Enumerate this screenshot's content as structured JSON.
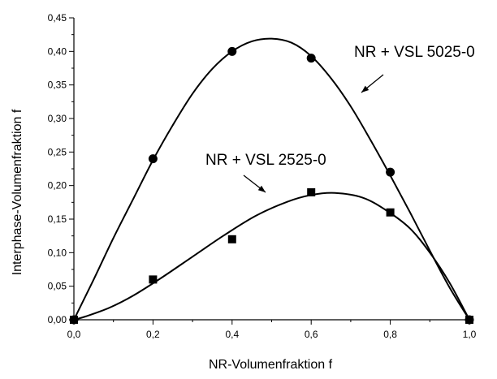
{
  "chart_data": {
    "type": "scatter",
    "title": "",
    "xlabel": "NR-Volumenfraktion f",
    "ylabel": "Interphase-Volumenfraktion f",
    "xlim": [
      0.0,
      1.0
    ],
    "ylim": [
      0.0,
      0.45
    ],
    "grid": false,
    "x_ticks": [
      {
        "value": 0.0,
        "label": "0,0"
      },
      {
        "value": 0.2,
        "label": "0,2"
      },
      {
        "value": 0.4,
        "label": "0,4"
      },
      {
        "value": 0.6,
        "label": "0,6"
      },
      {
        "value": 0.8,
        "label": "0,8"
      },
      {
        "value": 1.0,
        "label": "1,0"
      }
    ],
    "y_ticks": [
      {
        "value": 0.0,
        "label": "0,00"
      },
      {
        "value": 0.05,
        "label": "0,05"
      },
      {
        "value": 0.1,
        "label": "0,10"
      },
      {
        "value": 0.15,
        "label": "0,15"
      },
      {
        "value": 0.2,
        "label": "0,20"
      },
      {
        "value": 0.25,
        "label": "0,25"
      },
      {
        "value": 0.3,
        "label": "0,30"
      },
      {
        "value": 0.35,
        "label": "0,35"
      },
      {
        "value": 0.4,
        "label": "0,40"
      },
      {
        "value": 0.45,
        "label": "0,45"
      }
    ],
    "series": [
      {
        "name": "NR + VSL 5025-0",
        "marker": "circle",
        "points": [
          {
            "x": 0.0,
            "y": 0.0
          },
          {
            "x": 0.2,
            "y": 0.24
          },
          {
            "x": 0.4,
            "y": 0.4
          },
          {
            "x": 0.6,
            "y": 0.39
          },
          {
            "x": 0.8,
            "y": 0.22
          },
          {
            "x": 1.0,
            "y": 0.0
          }
        ],
        "fit_curve": [
          {
            "x": 0.0,
            "y": 0.0
          },
          {
            "x": 0.05,
            "y": 0.06
          },
          {
            "x": 0.1,
            "y": 0.122
          },
          {
            "x": 0.15,
            "y": 0.18
          },
          {
            "x": 0.2,
            "y": 0.238
          },
          {
            "x": 0.25,
            "y": 0.29
          },
          {
            "x": 0.3,
            "y": 0.337
          },
          {
            "x": 0.35,
            "y": 0.374
          },
          {
            "x": 0.4,
            "y": 0.4
          },
          {
            "x": 0.45,
            "y": 0.415
          },
          {
            "x": 0.5,
            "y": 0.419
          },
          {
            "x": 0.55,
            "y": 0.413
          },
          {
            "x": 0.6,
            "y": 0.393
          },
          {
            "x": 0.65,
            "y": 0.36
          },
          {
            "x": 0.7,
            "y": 0.318
          },
          {
            "x": 0.75,
            "y": 0.268
          },
          {
            "x": 0.8,
            "y": 0.215
          },
          {
            "x": 0.85,
            "y": 0.16
          },
          {
            "x": 0.9,
            "y": 0.103
          },
          {
            "x": 0.95,
            "y": 0.048
          },
          {
            "x": 1.0,
            "y": 0.0
          }
        ]
      },
      {
        "name": "NR + VSL 2525-0",
        "marker": "square",
        "points": [
          {
            "x": 0.0,
            "y": 0.0
          },
          {
            "x": 0.2,
            "y": 0.06
          },
          {
            "x": 0.4,
            "y": 0.12
          },
          {
            "x": 0.6,
            "y": 0.19
          },
          {
            "x": 0.8,
            "y": 0.16
          },
          {
            "x": 1.0,
            "y": 0.0
          }
        ],
        "fit_curve": [
          {
            "x": 0.0,
            "y": 0.0
          },
          {
            "x": 0.03,
            "y": 0.005
          },
          {
            "x": 0.09,
            "y": 0.018
          },
          {
            "x": 0.15,
            "y": 0.036
          },
          {
            "x": 0.22,
            "y": 0.062
          },
          {
            "x": 0.3,
            "y": 0.094
          },
          {
            "x": 0.38,
            "y": 0.126
          },
          {
            "x": 0.46,
            "y": 0.155
          },
          {
            "x": 0.54,
            "y": 0.176
          },
          {
            "x": 0.6,
            "y": 0.186
          },
          {
            "x": 0.66,
            "y": 0.189
          },
          {
            "x": 0.73,
            "y": 0.182
          },
          {
            "x": 0.79,
            "y": 0.163
          },
          {
            "x": 0.85,
            "y": 0.136
          },
          {
            "x": 0.9,
            "y": 0.1
          },
          {
            "x": 0.95,
            "y": 0.055
          },
          {
            "x": 1.0,
            "y": 0.0
          }
        ]
      }
    ],
    "annotations": [
      {
        "text": "NR + VSL 5025-0",
        "target": "NR + VSL 5025-0",
        "arrow": true
      },
      {
        "text": "NR + VSL 2525-0",
        "target": "NR + VSL 2525-0",
        "arrow": true
      }
    ]
  }
}
